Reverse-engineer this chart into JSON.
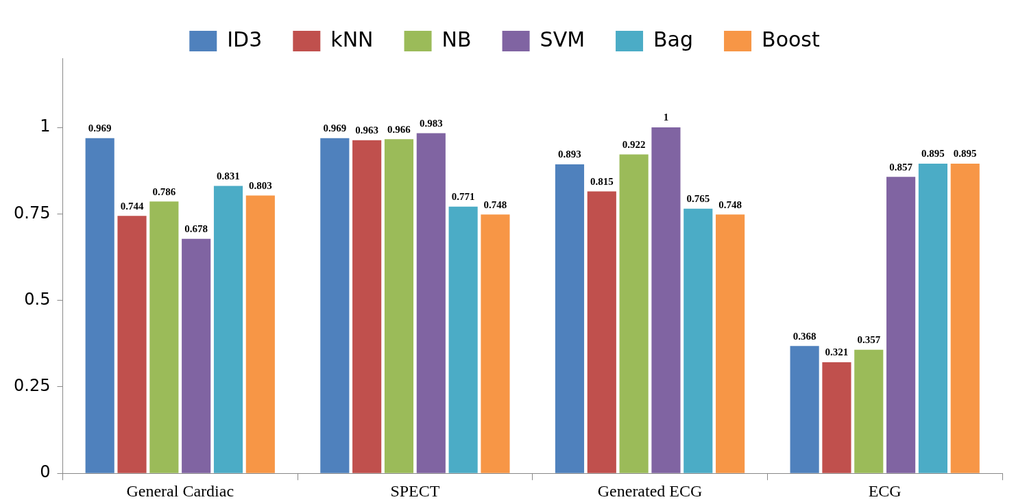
{
  "chart_data": {
    "type": "bar",
    "categories": [
      "General Cardiac",
      "SPECT",
      "Generated ECG",
      "ECG"
    ],
    "series": [
      {
        "name": "ID3",
        "color": "#4f81bd",
        "values": [
          0.969,
          0.969,
          0.893,
          0.368
        ]
      },
      {
        "name": "kNN",
        "color": "#c0504d",
        "values": [
          0.744,
          0.963,
          0.815,
          0.321
        ]
      },
      {
        "name": "NB",
        "color": "#9bbb59",
        "values": [
          0.786,
          0.966,
          0.922,
          0.357
        ]
      },
      {
        "name": "SVM",
        "color": "#8064a2",
        "values": [
          0.678,
          0.983,
          1,
          0.857
        ]
      },
      {
        "name": "Bag",
        "color": "#4bacc6",
        "values": [
          0.831,
          0.771,
          0.765,
          0.895
        ]
      },
      {
        "name": "Boost",
        "color": "#f79646",
        "values": [
          0.803,
          0.748,
          0.748,
          0.895
        ]
      }
    ],
    "ylim": [
      0,
      1.2
    ],
    "yticks": [
      0,
      0.25,
      0.5,
      0.75,
      1
    ],
    "grid": false,
    "legend": "top",
    "data_labels": true
  }
}
